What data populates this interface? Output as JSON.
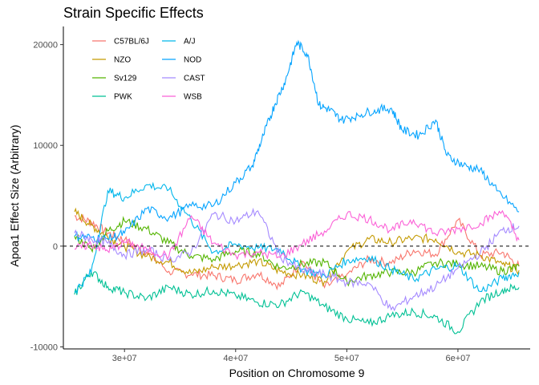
{
  "chart_data": {
    "type": "line",
    "title": "Strain Specific Effects",
    "xlabel": "Position on Chromosome 9",
    "ylabel": "Apoa1 Effect Size (Arbitrary)",
    "xlim": [
      24500000,
      66500000
    ],
    "ylim": [
      -10200,
      21800
    ],
    "x_ticks": [
      {
        "value": 30000000,
        "label": "3e+07"
      },
      {
        "value": 40000000,
        "label": "4e+07"
      },
      {
        "value": 50000000,
        "label": "5e+07"
      },
      {
        "value": 60000000,
        "label": "6e+07"
      }
    ],
    "y_ticks": [
      {
        "value": -10000,
        "label": "-10000"
      },
      {
        "value": 0,
        "label": "0"
      },
      {
        "value": 10000,
        "label": "10000"
      },
      {
        "value": 20000,
        "label": "20000"
      }
    ],
    "reference_line": {
      "y": 0,
      "style": "dashed"
    },
    "grid": false,
    "legend_position": "top-left, two columns",
    "series": [
      {
        "name": "C57BL/6J",
        "color": "#F8766D",
        "x": [
          25500000,
          27000000,
          28500000,
          30000000,
          32000000,
          34000000,
          36000000,
          38000000,
          40000000,
          42000000,
          44000000,
          46000000,
          48000000,
          50000000,
          52000000,
          54000000,
          56000000,
          58000000,
          60000000,
          62000000,
          64000000,
          65500000
        ],
        "y": [
          3000,
          2400,
          1300,
          600,
          -600,
          -2500,
          -2800,
          -2900,
          -3400,
          -2700,
          -4000,
          -1500,
          -4100,
          -2800,
          -1300,
          -1700,
          -400,
          -800,
          2600,
          -900,
          -600,
          -2000
        ]
      },
      {
        "name": "NZO",
        "color": "#C49A00",
        "x": [
          25500000,
          27000000,
          28500000,
          30000000,
          32000000,
          34000000,
          36000000,
          38000000,
          40000000,
          42000000,
          44000000,
          46000000,
          48000000,
          50000000,
          52000000,
          54000000,
          56000000,
          58000000,
          60000000,
          62000000,
          64000000,
          65500000
        ],
        "y": [
          3400,
          2100,
          900,
          0,
          -1000,
          -1600,
          -2700,
          -2100,
          -1900,
          -1500,
          -2500,
          -2900,
          -3500,
          -500,
          700,
          400,
          800,
          700,
          -600,
          -900,
          -1800,
          -2400
        ]
      },
      {
        "name": "Sv129",
        "color": "#53B400",
        "x": [
          25500000,
          27000000,
          28500000,
          30000000,
          32000000,
          34000000,
          36000000,
          38000000,
          40000000,
          42000000,
          44000000,
          46000000,
          48000000,
          50000000,
          52000000,
          54000000,
          56000000,
          58000000,
          60000000,
          62000000,
          64000000,
          65500000
        ],
        "y": [
          1000,
          -300,
          1500,
          2500,
          1700,
          300,
          -1000,
          -1300,
          -500,
          -700,
          -2200,
          -1800,
          -1600,
          -3500,
          -2900,
          -2600,
          -2600,
          -1600,
          -1800,
          -2000,
          -2500,
          -2000
        ]
      },
      {
        "name": "PWK",
        "color": "#00C094",
        "x": [
          25500000,
          27000000,
          28500000,
          30000000,
          32000000,
          34000000,
          36000000,
          38000000,
          40000000,
          42000000,
          44000000,
          46000000,
          48000000,
          50000000,
          52000000,
          54000000,
          56000000,
          58000000,
          60000000,
          62000000,
          64000000,
          65500000
        ],
        "y": [
          -4800,
          -2500,
          -4000,
          -4600,
          -5200,
          -4100,
          -4800,
          -4400,
          -4900,
          -5600,
          -5800,
          -4500,
          -6000,
          -7200,
          -7700,
          -6900,
          -6500,
          -7000,
          -8500,
          -5500,
          -4300,
          -4100
        ]
      },
      {
        "name": "A/J",
        "color": "#00B6EB",
        "x": [
          25500000,
          27000000,
          28500000,
          30000000,
          32000000,
          34000000,
          36000000,
          38000000,
          40000000,
          42000000,
          44000000,
          46000000,
          48000000,
          50000000,
          52000000,
          54000000,
          56000000,
          58000000,
          60000000,
          62000000,
          64000000,
          65500000
        ],
        "y": [
          -4500,
          -2600,
          5500,
          4800,
          6100,
          5600,
          2600,
          -600,
          200,
          -200,
          -300,
          -2300,
          -2900,
          -1400,
          -1100,
          -2300,
          -3300,
          -2300,
          -1900,
          -4500,
          -3200,
          -2600
        ]
      },
      {
        "name": "NOD",
        "color": "#06A4FF",
        "x": [
          25500000,
          27000000,
          28500000,
          30000000,
          32000000,
          34000000,
          36000000,
          38000000,
          40000000,
          41500000,
          42500000,
          43500000,
          44500000,
          45500000,
          46500000,
          47500000,
          48500000,
          49500000,
          51000000,
          52500000,
          54000000,
          55000000,
          56500000,
          58000000,
          59000000,
          60500000,
          62000000,
          63500000,
          65500000
        ],
        "y": [
          1000,
          900,
          700,
          1300,
          3700,
          2800,
          4000,
          4000,
          6300,
          8000,
          11000,
          14000,
          16500,
          20200,
          19000,
          14000,
          13500,
          12500,
          13000,
          13500,
          13700,
          11500,
          11000,
          12500,
          9000,
          8000,
          7600,
          5500,
          3400
        ]
      },
      {
        "name": "CAST",
        "color": "#A58AFF",
        "x": [
          25500000,
          27000000,
          28500000,
          30000000,
          32000000,
          34000000,
          36000000,
          38000000,
          40000000,
          42000000,
          44000000,
          46000000,
          48000000,
          50000000,
          52000000,
          54000000,
          56000000,
          58000000,
          60000000,
          62000000,
          64000000,
          65500000
        ],
        "y": [
          1300,
          700,
          300,
          -900,
          -300,
          -1400,
          -600,
          3200,
          2500,
          3500,
          -1000,
          -2500,
          -2800,
          -3600,
          -3700,
          -6300,
          -5000,
          -4000,
          -2200,
          -700,
          1600,
          2000
        ]
      },
      {
        "name": "WSB",
        "color": "#FB61D7",
        "x": [
          25500000,
          27000000,
          28500000,
          30000000,
          32000000,
          34000000,
          36000000,
          38000000,
          40000000,
          42000000,
          44000000,
          46000000,
          48000000,
          50000000,
          52000000,
          54000000,
          56000000,
          58000000,
          60000000,
          62000000,
          64000000,
          65500000
        ],
        "y": [
          -300,
          200,
          -500,
          400,
          -300,
          -1000,
          3000,
          300,
          -900,
          -600,
          -1100,
          200,
          1500,
          3200,
          2700,
          1600,
          2600,
          1200,
          1700,
          2300,
          3500,
          600
        ]
      }
    ]
  }
}
